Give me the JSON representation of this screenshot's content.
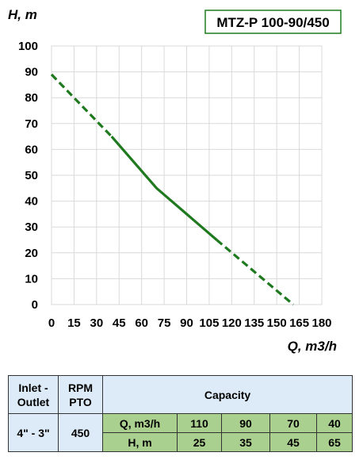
{
  "chart_data": {
    "type": "line",
    "title": "MTZ-P 100-90/450",
    "xlabel": "Q, m3/h",
    "ylabel": "H, m",
    "xlim": [
      0,
      180
    ],
    "ylim": [
      0,
      100
    ],
    "x_ticks": [
      "0",
      "15",
      "30",
      "45",
      "60",
      "75",
      "90",
      "105",
      "120",
      "135",
      "150",
      "165",
      "180"
    ],
    "y_ticks": [
      "0",
      "10",
      "20",
      "30",
      "40",
      "50",
      "60",
      "70",
      "80",
      "90",
      "100"
    ],
    "grid": true,
    "series": [
      {
        "style": "dashed",
        "x": [
          0,
          40
        ],
        "y": [
          89,
          65
        ]
      },
      {
        "style": "solid",
        "x": [
          40,
          70,
          90,
          110
        ],
        "y": [
          65,
          45,
          35,
          25
        ]
      },
      {
        "style": "dashed",
        "x": [
          110,
          161
        ],
        "y": [
          25,
          0
        ]
      }
    ],
    "line_color": "#1f7a1f"
  },
  "table": {
    "inlet_outlet": [
      "Inlet -",
      "Outlet"
    ],
    "rpm_pto": [
      "RPM",
      "PTO"
    ],
    "capacity": "Capacity",
    "size": "4\" - 3\"",
    "rpm": "450",
    "q_label": "Q, m3/h",
    "h_label": "H, m",
    "q_values": [
      "110",
      "90",
      "70",
      "40"
    ],
    "h_values": [
      "25",
      "35",
      "45",
      "65"
    ]
  }
}
